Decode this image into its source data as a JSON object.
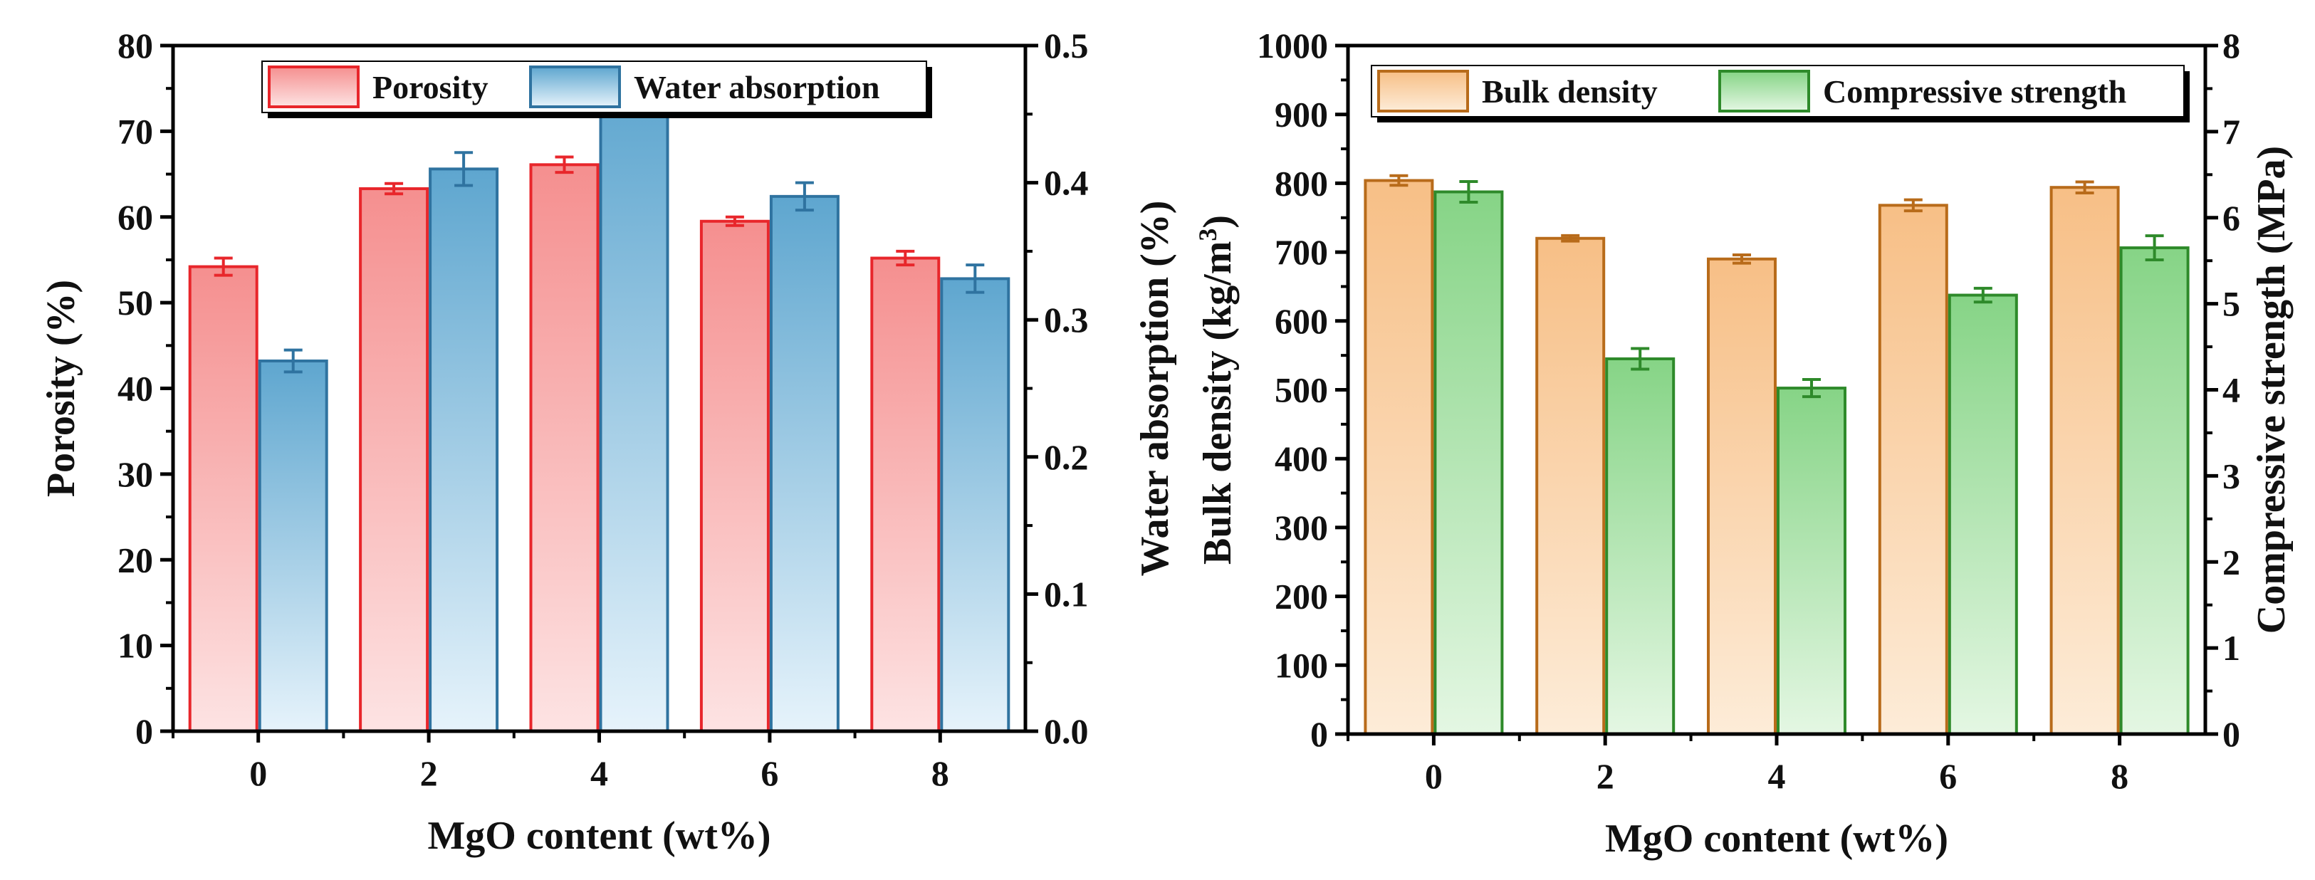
{
  "chart_data": [
    {
      "type": "bar",
      "categories": [
        "0",
        "2",
        "4",
        "6",
        "8"
      ],
      "xlabel": "MgO content (wt%)",
      "ylabel_left": "Porosity (%)",
      "ylabel_right": "Water absorption (%)",
      "ylim_left": [
        0,
        80
      ],
      "ylim_right": [
        0,
        0.5
      ],
      "left_ticks": [
        "0",
        "10",
        "20",
        "30",
        "40",
        "50",
        "60",
        "70",
        "80"
      ],
      "right_ticks": [
        "0.0",
        "0.1",
        "0.2",
        "0.3",
        "0.4",
        "0.5"
      ],
      "legend_position": "top-center",
      "series": [
        {
          "name": "Porosity",
          "axis": "left",
          "values": [
            54.2,
            63.3,
            66.1,
            59.5,
            55.2
          ],
          "errors": [
            1.0,
            0.6,
            0.9,
            0.5,
            0.8
          ],
          "color": "#e8262b",
          "fill_top": "#f58f8f",
          "fill_bottom": "#fde3e3"
        },
        {
          "name": "Water absorption",
          "axis": "right",
          "values": [
            0.27,
            0.41,
            0.47,
            0.39,
            0.33
          ],
          "errors": [
            0.008,
            0.012,
            0.013,
            0.01,
            0.01
          ],
          "color": "#2f73a0",
          "fill_top": "#5ea6cf",
          "fill_bottom": "#e6f3fb"
        }
      ]
    },
    {
      "type": "bar",
      "categories": [
        "0",
        "2",
        "4",
        "6",
        "8"
      ],
      "xlabel": "MgO content (wt%)",
      "ylabel_left": "Bulk density (kg/m",
      "ylabel_left_sup": "3",
      "ylabel_left_end": ")",
      "ylabel_right": "Compressive strength (MPa)",
      "ylim_left": [
        0,
        1000
      ],
      "ylim_right": [
        0,
        8
      ],
      "left_ticks": [
        "0",
        "100",
        "200",
        "300",
        "400",
        "500",
        "600",
        "700",
        "800",
        "900",
        "1000"
      ],
      "right_ticks": [
        "0",
        "1",
        "2",
        "3",
        "4",
        "5",
        "6",
        "7",
        "8"
      ],
      "legend_position": "top-center",
      "series": [
        {
          "name": "Bulk density",
          "axis": "left",
          "values": [
            804,
            720,
            690,
            768,
            794
          ],
          "errors": [
            7,
            4,
            6,
            8,
            8
          ],
          "color": "#b86b1a",
          "fill_top": "#f7bf86",
          "fill_bottom": "#fdecd8"
        },
        {
          "name": "Compressive strength",
          "axis": "right",
          "values": [
            6.3,
            4.36,
            4.02,
            5.1,
            5.65
          ],
          "errors": [
            0.12,
            0.12,
            0.1,
            0.08,
            0.14
          ],
          "color": "#2e8a2a",
          "fill_top": "#86d486",
          "fill_bottom": "#e4f7e3"
        }
      ]
    }
  ]
}
